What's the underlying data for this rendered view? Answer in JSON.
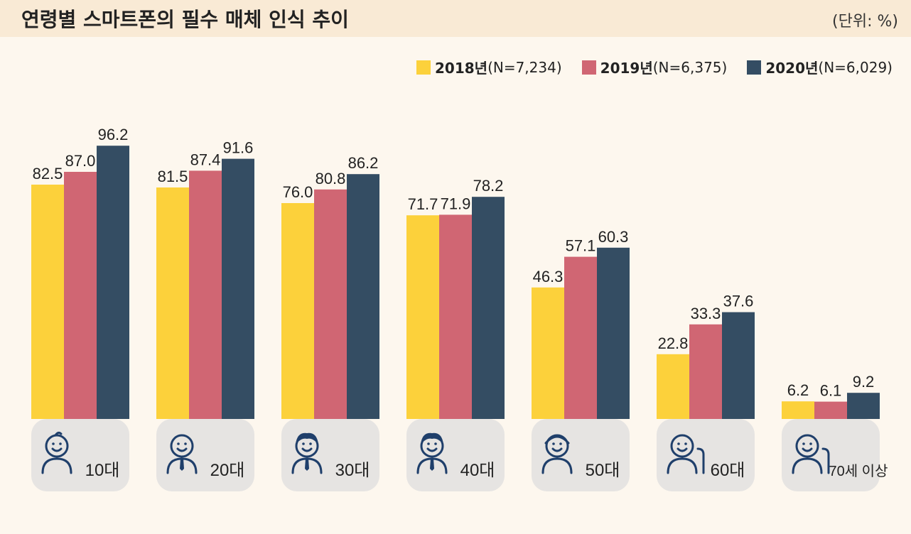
{
  "header": {
    "title": "연령별 스마트폰의 필수 매체 인식 추이",
    "unit": "(단위: %)"
  },
  "colors": {
    "y2018": "#fcd13b",
    "y2019": "#d06673",
    "y2020": "#344d63",
    "panel": "#e6e4e2",
    "icon": "#1f3f6b"
  },
  "chart_data": {
    "type": "bar",
    "title": "연령별 스마트폰의 필수 매체 인식 추이",
    "unit": "(단위: %)",
    "categories": [
      "10대",
      "20대",
      "30대",
      "40대",
      "50대",
      "60대",
      "70세 이상"
    ],
    "series": [
      {
        "name": "2018년",
        "n": "(N=7,234)",
        "values": [
          82.5,
          81.5,
          76.0,
          71.7,
          46.3,
          22.8,
          6.2
        ],
        "labels": [
          "82.5",
          "81.5",
          "76.0",
          "71.7",
          "46.3",
          "22.8",
          "6.2"
        ]
      },
      {
        "name": "2019년",
        "n": "(N=6,375)",
        "values": [
          87.0,
          87.4,
          80.8,
          71.9,
          57.1,
          33.3,
          6.1
        ],
        "labels": [
          "87.0",
          "87.4",
          "80.8",
          "71.9",
          "57.1",
          "33.3",
          "6.1"
        ]
      },
      {
        "name": "2020년",
        "n": "(N=6,029)",
        "values": [
          96.2,
          91.6,
          86.2,
          78.2,
          60.3,
          37.6,
          9.2
        ],
        "labels": [
          "96.2",
          "91.6",
          "86.2",
          "78.2",
          "60.3",
          "37.6",
          "9.2"
        ]
      }
    ],
    "ylim": [
      0,
      100
    ],
    "grid": false,
    "legend": "top-right"
  }
}
